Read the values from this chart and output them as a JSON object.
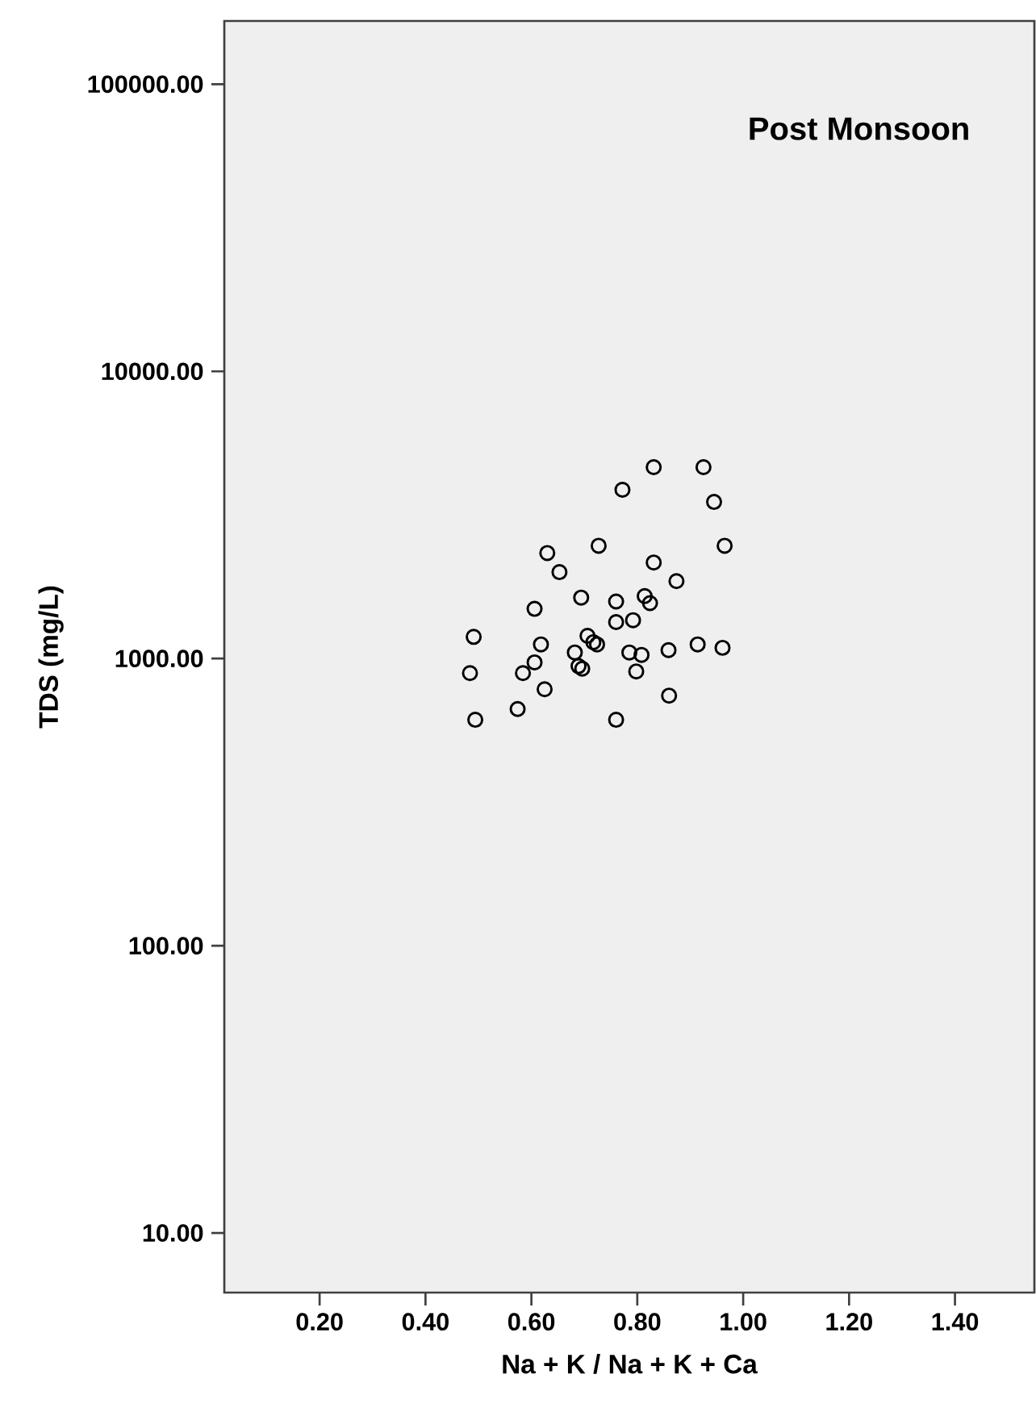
{
  "chart_data": {
    "type": "scatter",
    "title": "Post Monsoon",
    "xlabel": "Na + K / Na + K + Ca",
    "ylabel": "TDS (mg/L)",
    "log": "y",
    "marker": "circle",
    "xlim": [
      0.02,
      1.55
    ],
    "ylim": [
      6.2,
      166000
    ],
    "xticks": [
      {
        "value": 0.2,
        "label": "0.20"
      },
      {
        "value": 0.4,
        "label": "0.40"
      },
      {
        "value": 0.6,
        "label": "0.60"
      },
      {
        "value": 0.8,
        "label": "0.80"
      },
      {
        "value": 1.0,
        "label": "1.00"
      },
      {
        "value": 1.2,
        "label": "1.20"
      },
      {
        "value": 1.4,
        "label": "1.40"
      }
    ],
    "yticks": [
      {
        "value": 10,
        "label": "10.00"
      },
      {
        "value": 100,
        "label": "100.00"
      },
      {
        "value": 1000,
        "label": "1000.00"
      },
      {
        "value": 10000,
        "label": "10000.00"
      },
      {
        "value": 100000,
        "label": "100000.00"
      }
    ],
    "series": [
      {
        "color": "#000000",
        "x": [
          0.831,
          0.925,
          0.772,
          0.945,
          0.965,
          0.727,
          0.63,
          0.653,
          0.831,
          0.874,
          0.694,
          0.606,
          0.76,
          0.814,
          0.824,
          0.76,
          0.792,
          0.491,
          0.618,
          0.706,
          0.724,
          0.717,
          0.682,
          0.785,
          0.808,
          0.859,
          0.914,
          0.961,
          0.484,
          0.606,
          0.584,
          0.689,
          0.696,
          0.798,
          0.625,
          0.86,
          0.574,
          0.494,
          0.76
        ],
        "values": [
          4640,
          4640,
          3870,
          3510,
          2470,
          2470,
          2330,
          2000,
          2160,
          1860,
          1630,
          1490,
          1580,
          1650,
          1560,
          1340,
          1360,
          1190,
          1120,
          1200,
          1120,
          1140,
          1050,
          1050,
          1030,
          1070,
          1120,
          1090,
          890,
          970,
          890,
          941,
          922,
          902,
          782,
          743,
          667,
          612,
          612
        ]
      }
    ]
  }
}
